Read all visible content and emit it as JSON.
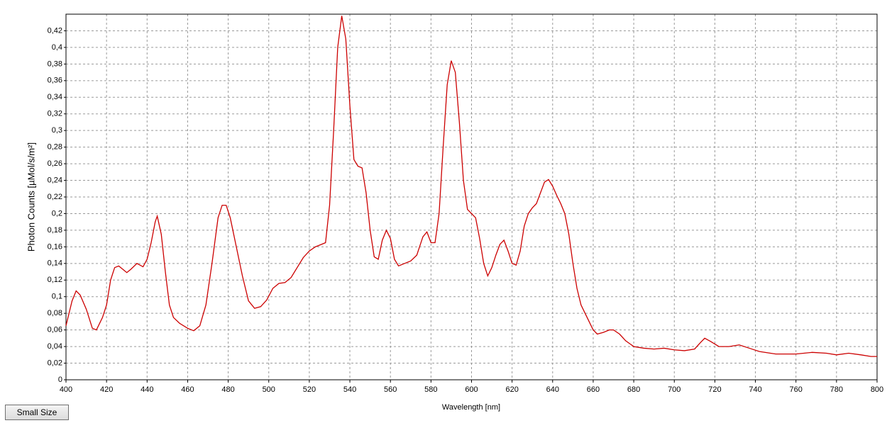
{
  "chart_data": {
    "type": "line",
    "x_label": "Wavelength [nm]",
    "y_label": "Photon Counts [µMol/s/m²]",
    "xlim": [
      400,
      800
    ],
    "ylim": [
      0,
      0.44
    ],
    "xticks": [
      400,
      420,
      440,
      460,
      480,
      500,
      520,
      540,
      560,
      580,
      600,
      620,
      640,
      660,
      680,
      700,
      720,
      740,
      760,
      780,
      800
    ],
    "yticks": [
      0,
      {
        "value": 0.02,
        "label": "0,02"
      },
      {
        "value": 0.04,
        "label": "0,04"
      },
      {
        "value": 0.06,
        "label": "0,06"
      },
      {
        "value": 0.08,
        "label": "0,08"
      },
      {
        "value": 0.1,
        "label": "0,1"
      },
      {
        "value": 0.12,
        "label": "0,12"
      },
      {
        "value": 0.14,
        "label": "0,14"
      },
      {
        "value": 0.16,
        "label": "0,16"
      },
      {
        "value": 0.18,
        "label": "0,18"
      },
      {
        "value": 0.2,
        "label": "0,2"
      },
      {
        "value": 0.22,
        "label": "0,22"
      },
      {
        "value": 0.24,
        "label": "0,24"
      },
      {
        "value": 0.26,
        "label": "0,26"
      },
      {
        "value": 0.28,
        "label": "0,28"
      },
      {
        "value": 0.3,
        "label": "0,3"
      },
      {
        "value": 0.32,
        "label": "0,32"
      },
      {
        "value": 0.34,
        "label": "0,34"
      },
      {
        "value": 0.36,
        "label": "0,36"
      },
      {
        "value": 0.38,
        "label": "0,38"
      },
      {
        "value": 0.4,
        "label": "0,4"
      },
      {
        "value": 0.42,
        "label": "0,42"
      }
    ],
    "grid": true,
    "color": "#cc0000",
    "x": [
      400,
      403,
      405,
      407,
      410,
      413,
      415,
      418,
      420,
      422,
      424,
      426,
      428,
      430,
      432,
      435,
      438,
      440,
      442,
      444,
      445,
      447,
      449,
      451,
      453,
      456,
      460,
      463,
      466,
      469,
      472,
      475,
      477,
      479,
      481,
      484,
      487,
      490,
      493,
      496,
      499,
      502,
      505,
      508,
      511,
      514,
      517,
      520,
      523,
      526,
      528,
      530,
      532,
      534,
      536,
      538,
      540,
      542,
      544,
      546,
      548,
      550,
      552,
      554,
      556,
      558,
      560,
      562,
      564,
      567,
      570,
      573,
      576,
      578,
      580,
      582,
      584,
      586,
      588,
      590,
      592,
      594,
      596,
      598,
      600,
      602,
      604,
      606,
      608,
      610,
      612,
      614,
      616,
      618,
      620,
      622,
      624,
      626,
      628,
      630,
      632,
      634,
      636,
      638,
      640,
      642,
      644,
      646,
      648,
      650,
      652,
      654,
      656,
      658,
      660,
      662,
      665,
      668,
      670,
      673,
      676,
      680,
      685,
      690,
      695,
      700,
      705,
      710,
      713,
      715,
      718,
      722,
      727,
      732,
      737,
      742,
      750,
      760,
      768,
      775,
      780,
      786,
      792,
      797,
      800
    ],
    "values": [
      0.065,
      0.095,
      0.107,
      0.102,
      0.085,
      0.062,
      0.06,
      0.075,
      0.09,
      0.12,
      0.135,
      0.137,
      0.133,
      0.129,
      0.133,
      0.14,
      0.136,
      0.145,
      0.165,
      0.19,
      0.197,
      0.175,
      0.13,
      0.09,
      0.075,
      0.068,
      0.062,
      0.059,
      0.065,
      0.09,
      0.14,
      0.195,
      0.21,
      0.21,
      0.195,
      0.16,
      0.125,
      0.095,
      0.086,
      0.088,
      0.096,
      0.11,
      0.116,
      0.117,
      0.123,
      0.135,
      0.147,
      0.155,
      0.16,
      0.163,
      0.165,
      0.21,
      0.3,
      0.4,
      0.438,
      0.41,
      0.33,
      0.265,
      0.257,
      0.255,
      0.225,
      0.18,
      0.148,
      0.145,
      0.168,
      0.18,
      0.17,
      0.145,
      0.137,
      0.14,
      0.143,
      0.15,
      0.172,
      0.178,
      0.165,
      0.165,
      0.2,
      0.28,
      0.355,
      0.384,
      0.37,
      0.31,
      0.24,
      0.205,
      0.2,
      0.195,
      0.17,
      0.14,
      0.125,
      0.135,
      0.15,
      0.163,
      0.168,
      0.155,
      0.14,
      0.138,
      0.155,
      0.185,
      0.2,
      0.207,
      0.212,
      0.225,
      0.238,
      0.241,
      0.233,
      0.222,
      0.212,
      0.2,
      0.175,
      0.14,
      0.11,
      0.09,
      0.08,
      0.07,
      0.06,
      0.055,
      0.057,
      0.06,
      0.06,
      0.055,
      0.047,
      0.04,
      0.038,
      0.037,
      0.038,
      0.036,
      0.035,
      0.037,
      0.045,
      0.05,
      0.046,
      0.04,
      0.04,
      0.042,
      0.038,
      0.034,
      0.031,
      0.031,
      0.033,
      0.032,
      0.03,
      0.032,
      0.03,
      0.028,
      0.028
    ]
  },
  "ui": {
    "button": "Small Size"
  }
}
